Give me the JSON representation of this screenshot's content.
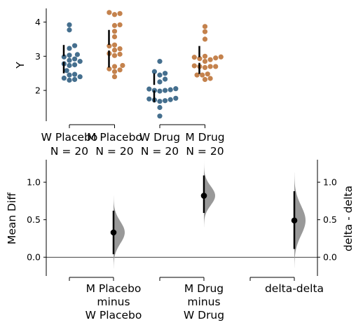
{
  "chart_data": [
    {
      "type": "scatter",
      "subtype": "swarm",
      "ylabel": "Y",
      "ylim": [
        1.1,
        4.4
      ],
      "yticks": [
        2,
        3,
        4
      ],
      "groups": [
        {
          "label_line1": "W Placebo",
          "label_line2": "N = 20",
          "color": "#456f8e",
          "values": [
            3.92,
            3.77,
            3.31,
            3.23,
            3.05,
            3.03,
            2.98,
            2.92,
            2.88,
            2.85,
            2.78,
            2.75,
            2.73,
            2.58,
            2.47,
            2.45,
            2.4,
            2.36,
            2.32,
            2.3
          ],
          "mean": 2.92,
          "sd_low": 2.5,
          "sd_high": 3.33
        },
        {
          "label_line1": "M Placebo",
          "label_line2": "N = 20",
          "color": "#c4824d",
          "values": [
            4.28,
            4.25,
            4.22,
            3.92,
            3.9,
            3.73,
            3.57,
            3.33,
            3.3,
            3.22,
            3.18,
            3.08,
            3.06,
            3.02,
            2.73,
            2.7,
            2.63,
            2.6,
            2.55,
            2.4
          ],
          "mean": 3.25,
          "sd_low": 2.67,
          "sd_high": 3.77
        },
        {
          "label_line1": "W Drug",
          "label_line2": "N = 20",
          "color": "#456f8e",
          "values": [
            2.85,
            2.55,
            2.5,
            2.45,
            2.33,
            2.25,
            2.05,
            2.04,
            2.02,
            2.0,
            2.0,
            1.98,
            1.77,
            1.75,
            1.73,
            1.72,
            1.7,
            1.68,
            1.5,
            1.25
          ],
          "mean": 2.08,
          "sd_low": 1.65,
          "sd_high": 2.5
        },
        {
          "label_line1": "M Drug",
          "label_line2": "N = 20",
          "color": "#c4824d",
          "values": [
            3.87,
            3.72,
            3.5,
            3.0,
            2.98,
            2.97,
            2.95,
            2.93,
            2.9,
            2.85,
            2.72,
            2.7,
            2.7,
            2.7,
            2.67,
            2.48,
            2.45,
            2.45,
            2.35,
            2.32
          ],
          "mean": 2.89,
          "sd_low": 2.48,
          "sd_high": 3.3
        }
      ]
    },
    {
      "type": "area",
      "subtype": "bootstrap-distribution",
      "ylabel": "Mean Diff",
      "ylabel_right": "delta - delta",
      "ylim": [
        -0.25,
        1.3
      ],
      "yticks": [
        0.0,
        0.5,
        1.0
      ],
      "right_yticks": [
        0.0,
        0.5,
        1.0
      ],
      "zero_line": true,
      "curve_color": "#999999",
      "comparisons": [
        {
          "label_lines": [
            "M Placebo",
            "minus",
            "W Placebo"
          ],
          "estimate": 0.33,
          "ci_low": 0.04,
          "ci_high": 0.62,
          "dist_low": -0.15,
          "dist_high": 0.82
        },
        {
          "label_lines": [
            "M Drug",
            "minus",
            "W Drug"
          ],
          "estimate": 0.82,
          "ci_low": 0.59,
          "ci_high": 1.09,
          "dist_low": 0.4,
          "dist_high": 1.32
        },
        {
          "label_lines": [
            "delta-delta"
          ],
          "estimate": 0.49,
          "ci_low": 0.11,
          "ci_high": 0.88,
          "dist_low": -0.14,
          "dist_high": 1.13
        }
      ]
    }
  ]
}
